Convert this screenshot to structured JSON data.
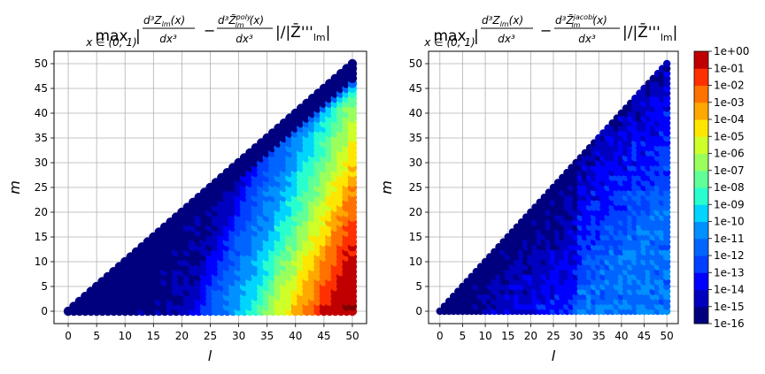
{
  "colorbar": {
    "tick_labels": [
      "1e-16",
      "1e-15",
      "1e-14",
      "1e-13",
      "1e-12",
      "1e-11",
      "1e-10",
      "1e-09",
      "1e-08",
      "1e-07",
      "1e-06",
      "1e-05",
      "1e-04",
      "1e-03",
      "1e-02",
      "1e-01",
      "1e+00"
    ],
    "colors": [
      "#00007f",
      "#0000bf",
      "#0000ff",
      "#0040ff",
      "#0064ff",
      "#0090ff",
      "#00d4ff",
      "#29ffce",
      "#60ff97",
      "#9aff5d",
      "#ceff29",
      "#ffe600",
      "#ffa800",
      "#ff7200",
      "#ff3000",
      "#c00000"
    ],
    "top_color": "#7f0000"
  },
  "chart_data": [
    {
      "type": "scatter",
      "title": "max |d³Z_lm(x)/dx³ − d³Z̃^poly_lm(x)/dx³| / |Z̄'''_lm|",
      "title_parts": {
        "max": "max",
        "sub": "x ∈ (0, 1)",
        "num1": "d³Z",
        "num1_sub": "lm",
        "num1_tail": "(x)",
        "den": "dx³",
        "num2": "d³Z̃",
        "num2_sup": "poly",
        "num2_sub": "lm",
        "num2_tail": "(x)",
        "tail": "|/|Z̄'''",
        "tail_sub": "lm",
        "close": "|"
      },
      "xlabel": "l",
      "ylabel": "m",
      "xlim": [
        -2.5,
        52.5
      ],
      "ylim": [
        -2.5,
        52.5
      ],
      "xticks": [
        0,
        5,
        10,
        15,
        20,
        25,
        30,
        35,
        40,
        45,
        50
      ],
      "yticks": [
        0,
        5,
        10,
        15,
        20,
        25,
        30,
        35,
        40,
        45,
        50
      ],
      "grid": true,
      "points": "all integer (l, m) with 0 ≤ m ≤ l ≤ 50",
      "color_scale": "log10 relative error, -16 to 0",
      "error_model": {
        "description": "log10 error grows with l and with distance from the diagonal (l - m)",
        "columns_l": [
          0,
          20,
          25,
          30,
          35,
          40,
          45,
          50
        ],
        "log10_error_at_m0": [
          -16,
          -15,
          -12,
          -10,
          -7,
          -4,
          -1,
          0
        ],
        "diagonal_band_log10": -16
      }
    },
    {
      "type": "scatter",
      "title": "max |d³Z_lm(x)/dx³ − d³Z̃^jacobi_lm(x)/dx³| / |Z̄'''_lm|",
      "title_parts": {
        "max": "max",
        "sub": "x ∈ (0, 1)",
        "num1": "d³Z",
        "num1_sub": "lm",
        "num1_tail": "(x)",
        "den": "dx³",
        "num2": "d³Z̃",
        "num2_sup": "jacobi",
        "num2_sub": "lm",
        "num2_tail": "(x)",
        "tail": "|/|Z̄'''",
        "tail_sub": "lm",
        "close": "|"
      },
      "xlabel": "l",
      "ylabel": "m",
      "xlim": [
        -2.5,
        52.5
      ],
      "ylim": [
        -2.5,
        52.5
      ],
      "xticks": [
        0,
        5,
        10,
        15,
        20,
        25,
        30,
        35,
        40,
        45,
        50
      ],
      "yticks": [
        0,
        5,
        10,
        15,
        20,
        25,
        30,
        35,
        40,
        45,
        50
      ],
      "grid": true,
      "points": "all integer (l, m) with 0 ≤ m ≤ l ≤ 50",
      "color_scale": "log10 relative error, -16 to 0",
      "error_model": {
        "description": "errors stay between 1e-16 and 1e-11 across the domain",
        "min_log10": -16,
        "max_log10": -11
      }
    }
  ]
}
